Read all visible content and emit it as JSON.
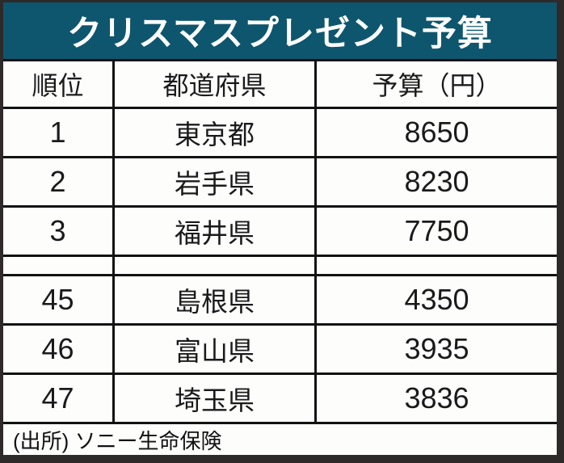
{
  "title": "クリスマスプレゼント予算",
  "colors": {
    "title_bg": "#0e566e",
    "title_text": "#ffffff",
    "table_border": "#121212",
    "frame_shadow": "#2e2a29",
    "row_bg": "#fdfdfc"
  },
  "table": {
    "headers": [
      "順位",
      "都道府県",
      "予算（円）"
    ],
    "rows": [
      {
        "rank": "1",
        "prefecture": "東京都",
        "budget": "8650"
      },
      {
        "rank": "2",
        "prefecture": "岩手県",
        "budget": "8230"
      },
      {
        "rank": "3",
        "prefecture": "福井県",
        "budget": "7750"
      },
      {
        "rank": "45",
        "prefecture": "島根県",
        "budget": "4350"
      },
      {
        "rank": "46",
        "prefecture": "富山県",
        "budget": "3935"
      },
      {
        "rank": "47",
        "prefecture": "埼玉県",
        "budget": "3836"
      }
    ]
  },
  "source": "(出所) ソニー生命保険",
  "chart_data": {
    "type": "table",
    "title": "クリスマスプレゼント予算",
    "columns": [
      "順位",
      "都道府県",
      "予算（円）"
    ],
    "rows": [
      [
        1,
        "東京都",
        8650
      ],
      [
        2,
        "岩手県",
        8230
      ],
      [
        3,
        "福井県",
        7750
      ],
      [
        45,
        "島根県",
        4350
      ],
      [
        46,
        "富山県",
        3935
      ],
      [
        47,
        "埼玉県",
        3836
      ]
    ],
    "notes": "ranks 4-44 omitted (blank spacer row between rank 3 and rank 45)",
    "source": "(出所) ソニー生命保険"
  }
}
